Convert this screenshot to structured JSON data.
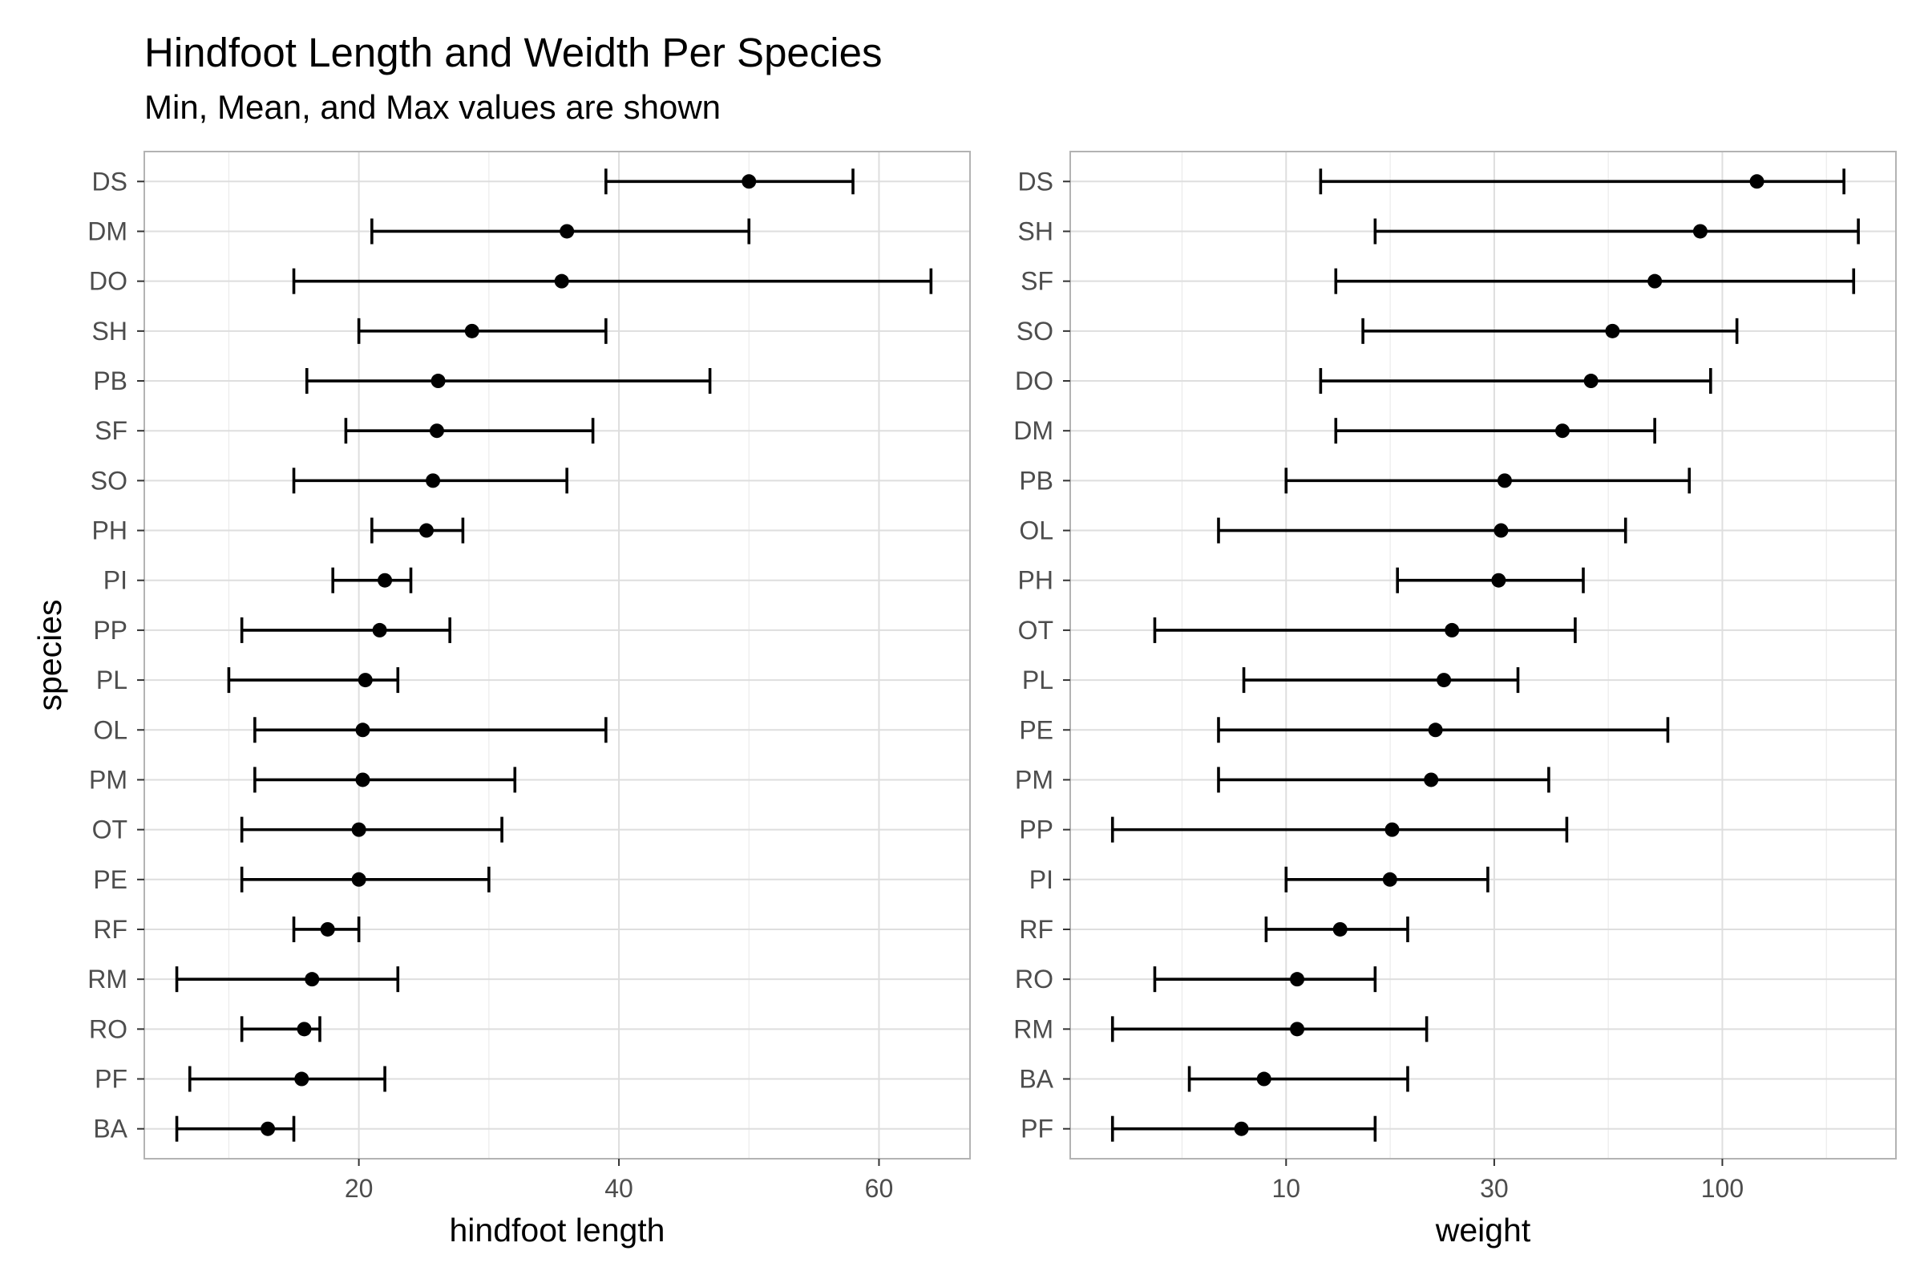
{
  "title": "Hindfoot Length and Weidth Per Species",
  "subtitle": "Min, Mean, and Max values are shown",
  "chart_data": [
    {
      "type": "errorbar",
      "xlabel": "hindfoot length",
      "ylabel": "species",
      "xscale": "linear",
      "xlim": [
        3.5,
        67
      ],
      "xticks": [
        20,
        40,
        60
      ],
      "grid": true,
      "categories": [
        "DS",
        "DM",
        "DO",
        "SH",
        "PB",
        "SF",
        "SO",
        "PH",
        "PI",
        "PP",
        "PL",
        "OL",
        "PM",
        "OT",
        "PE",
        "RF",
        "RM",
        "RO",
        "PF",
        "BA"
      ],
      "series": [
        {
          "min": [
            39,
            21,
            15,
            20,
            16,
            19,
            15,
            21,
            18,
            11,
            10,
            12,
            12,
            11,
            11,
            15,
            6,
            11,
            7,
            6
          ],
          "mean": [
            50,
            36,
            35.6,
            28.7,
            26.1,
            26,
            25.7,
            25.2,
            22,
            21.6,
            20.5,
            20.3,
            20.3,
            20,
            20,
            17.6,
            16.4,
            15.8,
            15.6,
            13
          ],
          "max": [
            58,
            50,
            64,
            39,
            47,
            38,
            36,
            28,
            24,
            27,
            23,
            39,
            32,
            31,
            30,
            20,
            23,
            17,
            22,
            15
          ]
        }
      ]
    },
    {
      "type": "errorbar",
      "xlabel": "weight",
      "ylabel": "",
      "xscale": "log10",
      "xlim": [
        3.2,
        250
      ],
      "xticks": [
        10,
        30,
        100
      ],
      "grid": true,
      "categories": [
        "DS",
        "SH",
        "SF",
        "SO",
        "DO",
        "DM",
        "PB",
        "OL",
        "PH",
        "OT",
        "PL",
        "PE",
        "PM",
        "PP",
        "PI",
        "RF",
        "RO",
        "RM",
        "BA",
        "PF"
      ],
      "series": [
        {
          "min": [
            12,
            16,
            13,
            15,
            12,
            13,
            10,
            7,
            18,
            5,
            8,
            7,
            7,
            4,
            10,
            9,
            5,
            4,
            6,
            4
          ],
          "mean": [
            120,
            89,
            70,
            56,
            50,
            43,
            31.7,
            31.1,
            30.7,
            24,
            23,
            22,
            21.5,
            17.5,
            17.3,
            13.3,
            10.6,
            10.6,
            8.9,
            7.9
          ],
          "max": [
            190,
            205,
            200,
            108,
            94,
            70,
            84,
            60,
            48,
            46,
            34,
            75,
            40,
            44,
            29,
            19,
            16,
            21,
            19,
            16
          ]
        }
      ]
    }
  ]
}
